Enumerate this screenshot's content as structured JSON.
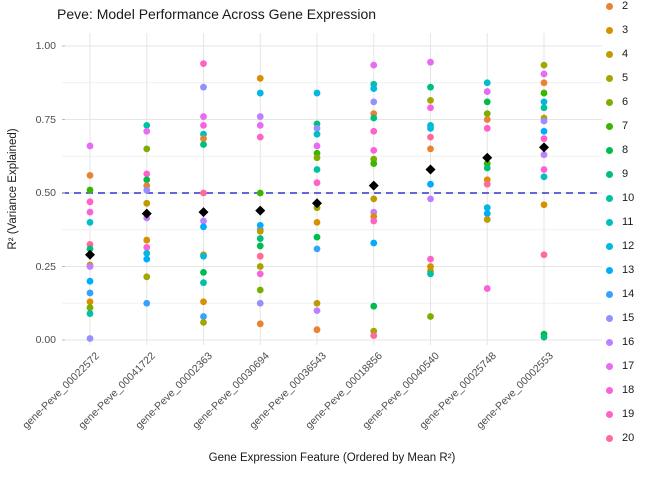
{
  "title": "Peve: Model Performance Across Gene Expression",
  "chart_data": {
    "type": "scatter",
    "title": "Peve: Model Performance Across Gene Expression",
    "xlabel": "Gene Expression Feature (Ordered by Mean R²)",
    "ylabel": "R² (Variance Explained)",
    "ylim": [
      0,
      1
    ],
    "grid": true,
    "legend_position": "right",
    "yticks": [
      {
        "value": 0.0,
        "label": "0.00"
      },
      {
        "value": 0.25,
        "label": "0.25"
      },
      {
        "value": 0.5,
        "label": "0.50"
      },
      {
        "value": 0.75,
        "label": "0.75"
      },
      {
        "value": 1.0,
        "label": "1.00"
      }
    ],
    "yminor": [
      0.125,
      0.375,
      0.625,
      0.875
    ],
    "reference_line": {
      "y": 0.5,
      "color": "#3333CC",
      "style": "dashed"
    },
    "palette": {
      "2": "#EA8331",
      "3": "#D89000",
      "4": "#C09B00",
      "5": "#A3A500",
      "6": "#7CAE00",
      "7": "#39B600",
      "8": "#00BB4E",
      "9": "#00BF7D",
      "10": "#00C1A3",
      "11": "#00BFC4",
      "12": "#00B8E0",
      "13": "#00ACFC",
      "14": "#35A2FF",
      "15": "#9590FF",
      "16": "#BF80FF",
      "17": "#E76BF3",
      "18": "#FA62DB",
      "19": "#FF61C9",
      "20": "#FF6A98"
    },
    "legend": [
      "2",
      "3",
      "4",
      "5",
      "6",
      "7",
      "8",
      "9",
      "10",
      "11",
      "12",
      "13",
      "14",
      "15",
      "16",
      "17",
      "18",
      "19",
      "20"
    ],
    "categories": [
      "gene-Peve_00022572",
      "gene-Peve_00041722",
      "gene-Peve_00002363",
      "gene-Peve_00030694",
      "gene-Peve_00036543",
      "gene-Peve_00018856",
      "gene-Peve_00040540",
      "gene-Peve_00025748",
      "gene-Peve_00002553"
    ],
    "mean_series": {
      "name": "Mean R²",
      "marker": "diamond",
      "color": "#000000",
      "values": [
        0.29,
        0.43,
        0.435,
        0.44,
        0.465,
        0.525,
        0.58,
        0.62,
        0.655
      ]
    },
    "points": [
      [
        [
          "17",
          0.66
        ],
        [
          "2",
          0.56
        ],
        [
          "7",
          0.51
        ],
        [
          "19",
          0.47
        ],
        [
          "18",
          0.435
        ],
        [
          "11",
          0.4
        ],
        [
          "20",
          0.325
        ],
        [
          "9",
          0.31
        ],
        [
          "4",
          0.255
        ],
        [
          "16",
          0.25
        ],
        [
          "13",
          0.2
        ],
        [
          "14",
          0.16
        ],
        [
          "3",
          0.13
        ],
        [
          "6",
          0.11
        ],
        [
          "10",
          0.09
        ],
        [
          "15",
          0.005
        ]
      ],
      [
        [
          "10",
          0.73
        ],
        [
          "17",
          0.71
        ],
        [
          "6",
          0.65
        ],
        [
          "19",
          0.565
        ],
        [
          "8",
          0.545
        ],
        [
          "2",
          0.525
        ],
        [
          "15",
          0.51
        ],
        [
          "4",
          0.465
        ],
        [
          "16",
          0.415
        ],
        [
          "3",
          0.34
        ],
        [
          "18",
          0.315
        ],
        [
          "12",
          0.295
        ],
        [
          "13",
          0.275
        ],
        [
          "5",
          0.215
        ],
        [
          "14",
          0.125
        ]
      ],
      [
        [
          "19",
          0.94
        ],
        [
          "15",
          0.86
        ],
        [
          "17",
          0.76
        ],
        [
          "18",
          0.73
        ],
        [
          "11",
          0.7
        ],
        [
          "2",
          0.685
        ],
        [
          "9",
          0.665
        ],
        [
          "20",
          0.5
        ],
        [
          "16",
          0.405
        ],
        [
          "13",
          0.385
        ],
        [
          "4",
          0.29
        ],
        [
          "12",
          0.285
        ],
        [
          "8",
          0.23
        ],
        [
          "10",
          0.195
        ],
        [
          "3",
          0.13
        ],
        [
          "14",
          0.08
        ],
        [
          "5",
          0.06
        ]
      ],
      [
        [
          "3",
          0.89
        ],
        [
          "12",
          0.84
        ],
        [
          "16",
          0.76
        ],
        [
          "17",
          0.73
        ],
        [
          "19",
          0.69
        ],
        [
          "7",
          0.5
        ],
        [
          "13",
          0.39
        ],
        [
          "14",
          0.375
        ],
        [
          "4",
          0.37
        ],
        [
          "9",
          0.345
        ],
        [
          "8",
          0.32
        ],
        [
          "20",
          0.285
        ],
        [
          "5",
          0.25
        ],
        [
          "18",
          0.225
        ],
        [
          "6",
          0.17
        ],
        [
          "15",
          0.125
        ],
        [
          "2",
          0.055
        ]
      ],
      [
        [
          "12",
          0.84
        ],
        [
          "9",
          0.735
        ],
        [
          "15",
          0.72
        ],
        [
          "11",
          0.7
        ],
        [
          "17",
          0.66
        ],
        [
          "7",
          0.635
        ],
        [
          "6",
          0.62
        ],
        [
          "10",
          0.58
        ],
        [
          "19",
          0.535
        ],
        [
          "5",
          0.45
        ],
        [
          "3",
          0.4
        ],
        [
          "8",
          0.35
        ],
        [
          "14",
          0.31
        ],
        [
          "4",
          0.125
        ],
        [
          "16",
          0.1
        ],
        [
          "2",
          0.035
        ]
      ],
      [
        [
          "17",
          0.935
        ],
        [
          "10",
          0.87
        ],
        [
          "12",
          0.855
        ],
        [
          "15",
          0.81
        ],
        [
          "2",
          0.77
        ],
        [
          "9",
          0.755
        ],
        [
          "19",
          0.71
        ],
        [
          "18",
          0.645
        ],
        [
          "6",
          0.615
        ],
        [
          "7",
          0.6
        ],
        [
          "4",
          0.48
        ],
        [
          "16",
          0.435
        ],
        [
          "3",
          0.42
        ],
        [
          "19",
          0.405
        ],
        [
          "13",
          0.33
        ],
        [
          "8",
          0.115
        ],
        [
          "5",
          0.03
        ],
        [
          "20",
          0.015
        ]
      ],
      [
        [
          "17",
          0.945
        ],
        [
          "9",
          0.86
        ],
        [
          "5",
          0.815
        ],
        [
          "18",
          0.79
        ],
        [
          "11",
          0.73
        ],
        [
          "12",
          0.72
        ],
        [
          "20",
          0.69
        ],
        [
          "2",
          0.65
        ],
        [
          "7",
          0.58
        ],
        [
          "13",
          0.53
        ],
        [
          "16",
          0.48
        ],
        [
          "19",
          0.275
        ],
        [
          "3",
          0.25
        ],
        [
          "4",
          0.235
        ],
        [
          "10",
          0.225
        ],
        [
          "6",
          0.08
        ]
      ],
      [
        [
          "11",
          0.875
        ],
        [
          "17",
          0.845
        ],
        [
          "8",
          0.81
        ],
        [
          "6",
          0.77
        ],
        [
          "2",
          0.75
        ],
        [
          "19",
          0.72
        ],
        [
          "7",
          0.6
        ],
        [
          "9",
          0.585
        ],
        [
          "3",
          0.545
        ],
        [
          "20",
          0.53
        ],
        [
          "12",
          0.45
        ],
        [
          "13",
          0.43
        ],
        [
          "4",
          0.41
        ],
        [
          "18",
          0.175
        ]
      ],
      [
        [
          "5",
          0.935
        ],
        [
          "17",
          0.905
        ],
        [
          "2",
          0.875
        ],
        [
          "7",
          0.84
        ],
        [
          "12",
          0.81
        ],
        [
          "10",
          0.79
        ],
        [
          "4",
          0.755
        ],
        [
          "15",
          0.745
        ],
        [
          "13",
          0.71
        ],
        [
          "19",
          0.685
        ],
        [
          "16",
          0.63
        ],
        [
          "18",
          0.58
        ],
        [
          "11",
          0.555
        ],
        [
          "3",
          0.46
        ],
        [
          "20",
          0.29
        ],
        [
          "8",
          0.02
        ],
        [
          "9",
          0.01
        ]
      ]
    ]
  }
}
